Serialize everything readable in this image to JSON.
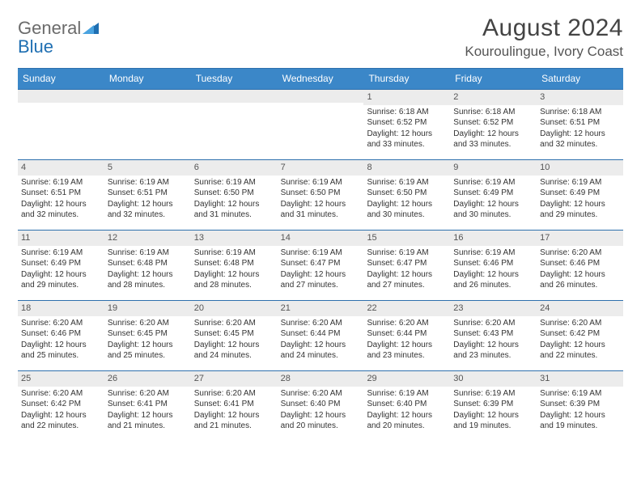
{
  "brand": {
    "word1": "General",
    "word2": "Blue"
  },
  "title": "August 2024",
  "location": "Kouroulingue, Ivory Coast",
  "header_bg": "#3b87c8",
  "border_color": "#2e70ad",
  "daybar_bg": "#ececec",
  "day_headers": [
    "Sunday",
    "Monday",
    "Tuesday",
    "Wednesday",
    "Thursday",
    "Friday",
    "Saturday"
  ],
  "weeks": [
    [
      {
        "n": "",
        "sr": "",
        "ss": "",
        "dl": ""
      },
      {
        "n": "",
        "sr": "",
        "ss": "",
        "dl": ""
      },
      {
        "n": "",
        "sr": "",
        "ss": "",
        "dl": ""
      },
      {
        "n": "",
        "sr": "",
        "ss": "",
        "dl": ""
      },
      {
        "n": "1",
        "sr": "Sunrise: 6:18 AM",
        "ss": "Sunset: 6:52 PM",
        "dl": "Daylight: 12 hours and 33 minutes."
      },
      {
        "n": "2",
        "sr": "Sunrise: 6:18 AM",
        "ss": "Sunset: 6:52 PM",
        "dl": "Daylight: 12 hours and 33 minutes."
      },
      {
        "n": "3",
        "sr": "Sunrise: 6:18 AM",
        "ss": "Sunset: 6:51 PM",
        "dl": "Daylight: 12 hours and 32 minutes."
      }
    ],
    [
      {
        "n": "4",
        "sr": "Sunrise: 6:19 AM",
        "ss": "Sunset: 6:51 PM",
        "dl": "Daylight: 12 hours and 32 minutes."
      },
      {
        "n": "5",
        "sr": "Sunrise: 6:19 AM",
        "ss": "Sunset: 6:51 PM",
        "dl": "Daylight: 12 hours and 32 minutes."
      },
      {
        "n": "6",
        "sr": "Sunrise: 6:19 AM",
        "ss": "Sunset: 6:50 PM",
        "dl": "Daylight: 12 hours and 31 minutes."
      },
      {
        "n": "7",
        "sr": "Sunrise: 6:19 AM",
        "ss": "Sunset: 6:50 PM",
        "dl": "Daylight: 12 hours and 31 minutes."
      },
      {
        "n": "8",
        "sr": "Sunrise: 6:19 AM",
        "ss": "Sunset: 6:50 PM",
        "dl": "Daylight: 12 hours and 30 minutes."
      },
      {
        "n": "9",
        "sr": "Sunrise: 6:19 AM",
        "ss": "Sunset: 6:49 PM",
        "dl": "Daylight: 12 hours and 30 minutes."
      },
      {
        "n": "10",
        "sr": "Sunrise: 6:19 AM",
        "ss": "Sunset: 6:49 PM",
        "dl": "Daylight: 12 hours and 29 minutes."
      }
    ],
    [
      {
        "n": "11",
        "sr": "Sunrise: 6:19 AM",
        "ss": "Sunset: 6:49 PM",
        "dl": "Daylight: 12 hours and 29 minutes."
      },
      {
        "n": "12",
        "sr": "Sunrise: 6:19 AM",
        "ss": "Sunset: 6:48 PM",
        "dl": "Daylight: 12 hours and 28 minutes."
      },
      {
        "n": "13",
        "sr": "Sunrise: 6:19 AM",
        "ss": "Sunset: 6:48 PM",
        "dl": "Daylight: 12 hours and 28 minutes."
      },
      {
        "n": "14",
        "sr": "Sunrise: 6:19 AM",
        "ss": "Sunset: 6:47 PM",
        "dl": "Daylight: 12 hours and 27 minutes."
      },
      {
        "n": "15",
        "sr": "Sunrise: 6:19 AM",
        "ss": "Sunset: 6:47 PM",
        "dl": "Daylight: 12 hours and 27 minutes."
      },
      {
        "n": "16",
        "sr": "Sunrise: 6:19 AM",
        "ss": "Sunset: 6:46 PM",
        "dl": "Daylight: 12 hours and 26 minutes."
      },
      {
        "n": "17",
        "sr": "Sunrise: 6:20 AM",
        "ss": "Sunset: 6:46 PM",
        "dl": "Daylight: 12 hours and 26 minutes."
      }
    ],
    [
      {
        "n": "18",
        "sr": "Sunrise: 6:20 AM",
        "ss": "Sunset: 6:46 PM",
        "dl": "Daylight: 12 hours and 25 minutes."
      },
      {
        "n": "19",
        "sr": "Sunrise: 6:20 AM",
        "ss": "Sunset: 6:45 PM",
        "dl": "Daylight: 12 hours and 25 minutes."
      },
      {
        "n": "20",
        "sr": "Sunrise: 6:20 AM",
        "ss": "Sunset: 6:45 PM",
        "dl": "Daylight: 12 hours and 24 minutes."
      },
      {
        "n": "21",
        "sr": "Sunrise: 6:20 AM",
        "ss": "Sunset: 6:44 PM",
        "dl": "Daylight: 12 hours and 24 minutes."
      },
      {
        "n": "22",
        "sr": "Sunrise: 6:20 AM",
        "ss": "Sunset: 6:44 PM",
        "dl": "Daylight: 12 hours and 23 minutes."
      },
      {
        "n": "23",
        "sr": "Sunrise: 6:20 AM",
        "ss": "Sunset: 6:43 PM",
        "dl": "Daylight: 12 hours and 23 minutes."
      },
      {
        "n": "24",
        "sr": "Sunrise: 6:20 AM",
        "ss": "Sunset: 6:42 PM",
        "dl": "Daylight: 12 hours and 22 minutes."
      }
    ],
    [
      {
        "n": "25",
        "sr": "Sunrise: 6:20 AM",
        "ss": "Sunset: 6:42 PM",
        "dl": "Daylight: 12 hours and 22 minutes."
      },
      {
        "n": "26",
        "sr": "Sunrise: 6:20 AM",
        "ss": "Sunset: 6:41 PM",
        "dl": "Daylight: 12 hours and 21 minutes."
      },
      {
        "n": "27",
        "sr": "Sunrise: 6:20 AM",
        "ss": "Sunset: 6:41 PM",
        "dl": "Daylight: 12 hours and 21 minutes."
      },
      {
        "n": "28",
        "sr": "Sunrise: 6:20 AM",
        "ss": "Sunset: 6:40 PM",
        "dl": "Daylight: 12 hours and 20 minutes."
      },
      {
        "n": "29",
        "sr": "Sunrise: 6:19 AM",
        "ss": "Sunset: 6:40 PM",
        "dl": "Daylight: 12 hours and 20 minutes."
      },
      {
        "n": "30",
        "sr": "Sunrise: 6:19 AM",
        "ss": "Sunset: 6:39 PM",
        "dl": "Daylight: 12 hours and 19 minutes."
      },
      {
        "n": "31",
        "sr": "Sunrise: 6:19 AM",
        "ss": "Sunset: 6:39 PM",
        "dl": "Daylight: 12 hours and 19 minutes."
      }
    ]
  ]
}
